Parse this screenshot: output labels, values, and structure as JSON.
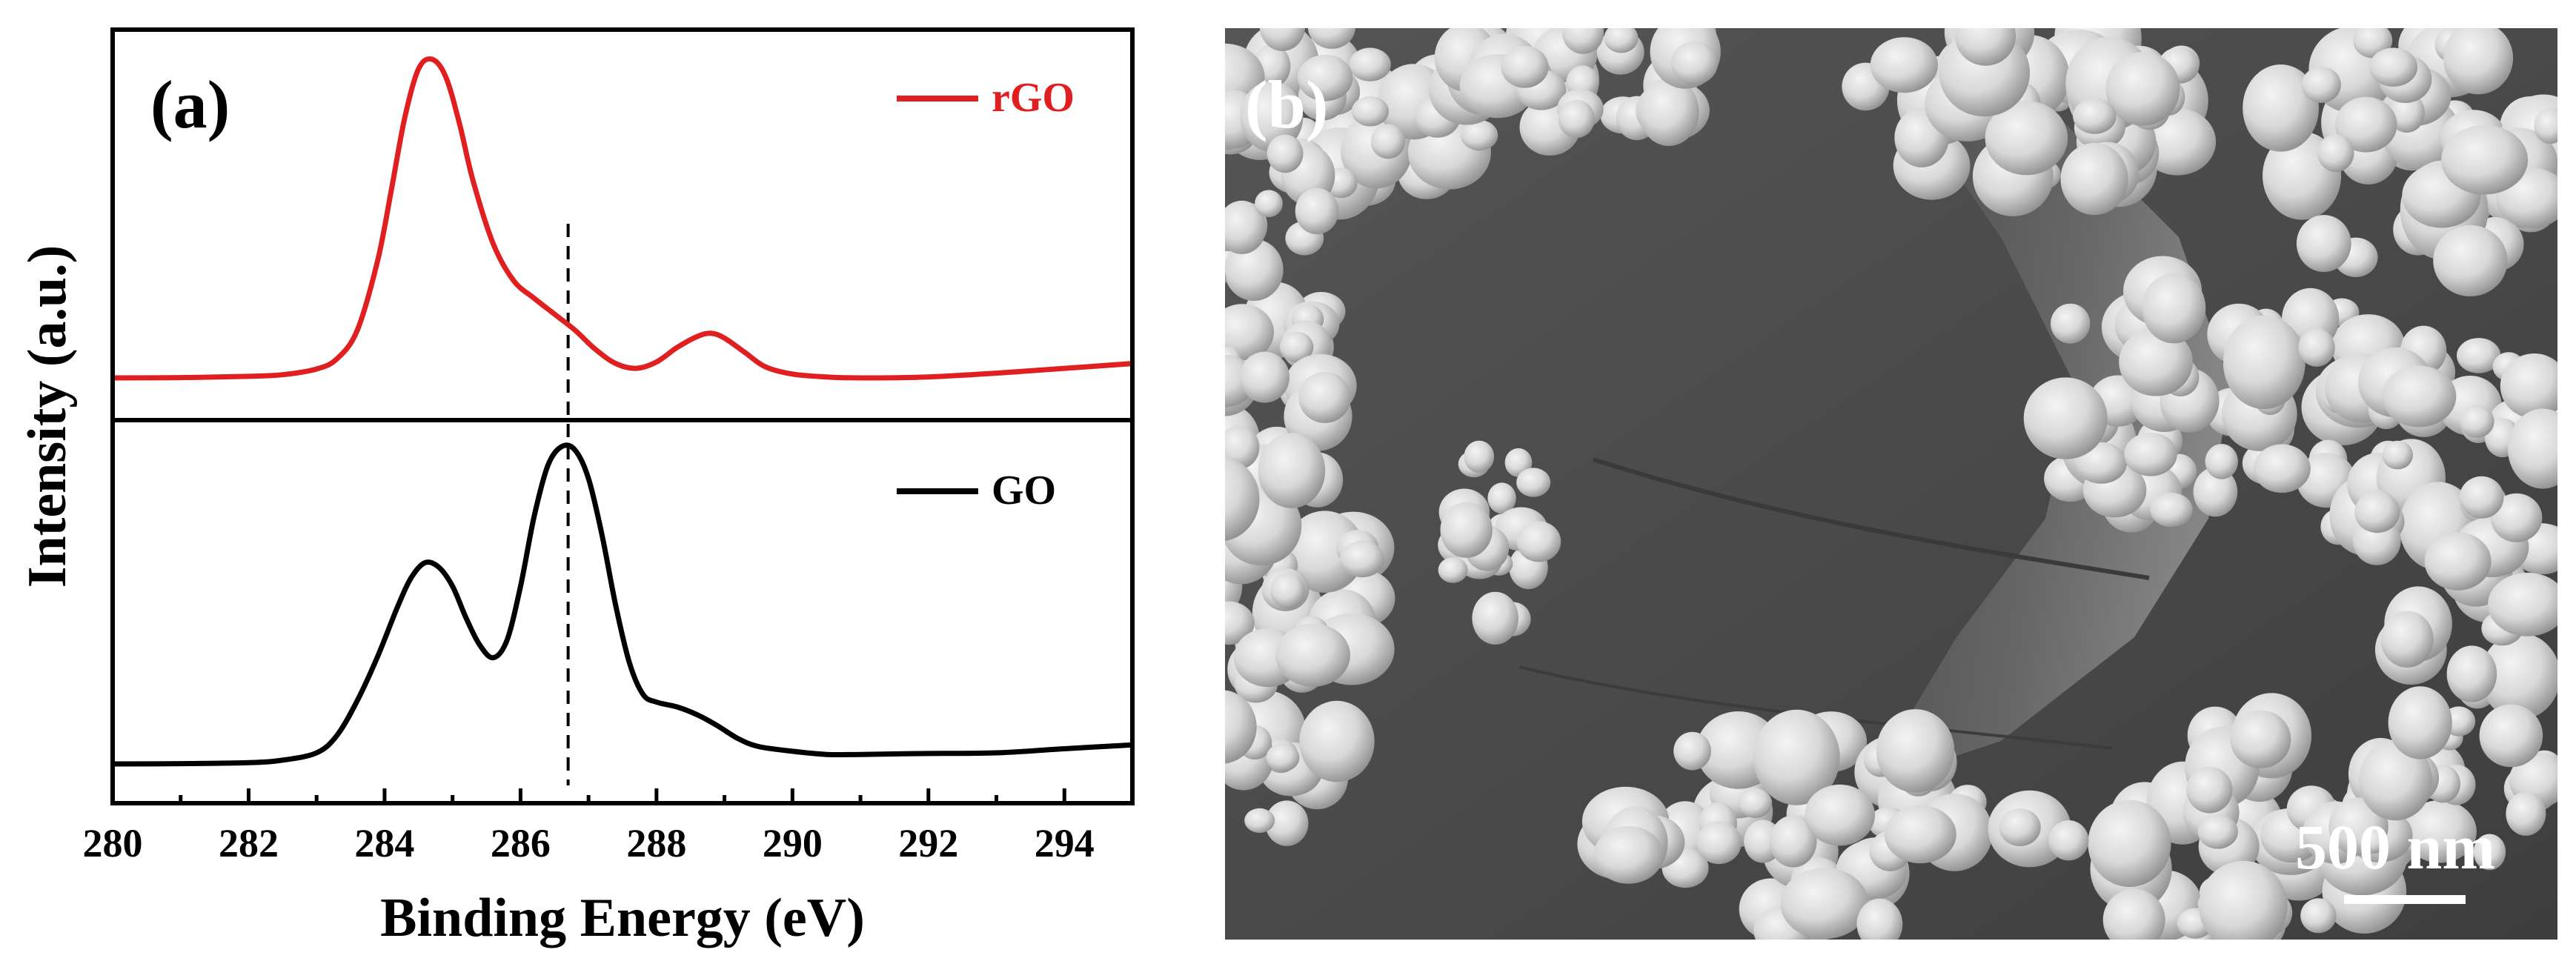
{
  "panel_a": {
    "label": "(a)",
    "chart_data": {
      "type": "line",
      "xlabel": "Binding Energy (eV)",
      "ylabel": "Intensity (a.u.)",
      "xlim": [
        280,
        295
      ],
      "x_ticks": [
        280,
        282,
        284,
        286,
        288,
        290,
        292,
        294
      ],
      "grid": false,
      "legend_placement": "top-right of each sub-panel",
      "reference_line_x": 286.7,
      "series": [
        {
          "name": "rGO",
          "color": "#e02020",
          "x": [
            280,
            281,
            282,
            282.5,
            283,
            283.3,
            283.6,
            283.9,
            284.1,
            284.3,
            284.5,
            284.7,
            284.9,
            285.1,
            285.3,
            285.6,
            285.9,
            286.2,
            286.5,
            286.8,
            287.1,
            287.4,
            287.7,
            288.0,
            288.3,
            288.6,
            288.8,
            289.0,
            289.3,
            289.6,
            290.0,
            290.5,
            291,
            292,
            293,
            294,
            295
          ],
          "values": [
            0.0,
            0.001,
            0.005,
            0.01,
            0.028,
            0.06,
            0.15,
            0.37,
            0.59,
            0.82,
            0.97,
            1.0,
            0.945,
            0.8,
            0.62,
            0.42,
            0.305,
            0.25,
            0.2,
            0.15,
            0.09,
            0.045,
            0.03,
            0.05,
            0.095,
            0.13,
            0.14,
            0.125,
            0.08,
            0.035,
            0.012,
            0.003,
            0.0,
            0.003,
            0.015,
            0.03,
            0.045
          ]
        },
        {
          "name": "GO",
          "color": "#000000",
          "x": [
            280,
            281,
            282,
            282.5,
            283,
            283.3,
            283.6,
            283.9,
            284.2,
            284.4,
            284.6,
            284.8,
            285.0,
            285.2,
            285.4,
            285.6,
            285.8,
            286.0,
            286.2,
            286.4,
            286.6,
            286.8,
            287.0,
            287.2,
            287.4,
            287.6,
            287.8,
            288.0,
            288.3,
            288.6,
            288.9,
            289.2,
            289.5,
            290.0,
            290.5,
            291,
            292,
            293,
            294,
            295
          ],
          "values": [
            0.0,
            0.001,
            0.004,
            0.012,
            0.035,
            0.09,
            0.2,
            0.34,
            0.5,
            0.59,
            0.635,
            0.62,
            0.56,
            0.46,
            0.375,
            0.335,
            0.39,
            0.56,
            0.78,
            0.94,
            1.0,
            0.99,
            0.9,
            0.72,
            0.5,
            0.32,
            0.22,
            0.195,
            0.18,
            0.155,
            0.12,
            0.08,
            0.055,
            0.04,
            0.03,
            0.03,
            0.033,
            0.035,
            0.048,
            0.06
          ]
        }
      ]
    }
  },
  "panel_b": {
    "label": "(b)",
    "scale_bar_label": "500 nm"
  },
  "colors": {
    "rGO": "#e02020",
    "GO": "#000000",
    "axis": "#000000"
  }
}
